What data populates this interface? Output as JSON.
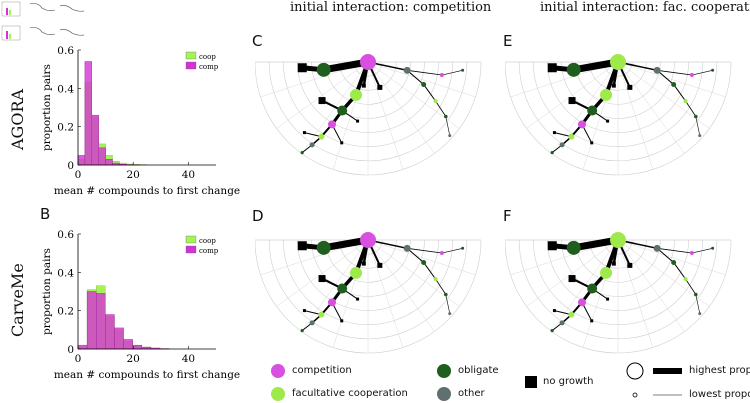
{
  "column_titles": {
    "competition": "initial interaction: competition",
    "cooperation": "initial interaction: fac. cooperation"
  },
  "row_labels": {
    "agora": "AGORA",
    "carveme": "CarveMe"
  },
  "panel_letters": {
    "b": "B",
    "c": "C",
    "d": "D",
    "e": "E",
    "f": "F"
  },
  "colors": {
    "coop": "#a6f25a",
    "comp": "#d433d4",
    "competition": "#d94fe0",
    "facultative_cooperation": "#9dea4a",
    "obligate": "#1f5e1f",
    "other": "#607070",
    "no_growth": "#000000"
  },
  "legend": {
    "competition": "competition",
    "facultative_cooperation": "facultative cooperation",
    "obligate": "obligate",
    "other": "other",
    "no_growth": "no growth",
    "highest": "highest proportion",
    "lowest": "lowest proportion"
  },
  "chart_data": [
    {
      "type": "bar",
      "panel": "AGORA",
      "xlabel": "mean # compounds to first change",
      "ylabel": "proportion pairs",
      "xlim": [
        0,
        50
      ],
      "ylim": [
        0,
        0.6
      ],
      "xticks": [
        "0",
        "20",
        "40"
      ],
      "yticks": [
        "0",
        "0.2",
        "0.4",
        "0.6"
      ],
      "bin_width": 2.5,
      "legend_position": "top-right",
      "series": [
        {
          "name": "coop",
          "values": [
            0.03,
            0.43,
            0.25,
            0.11,
            0.05,
            0.02,
            0.01,
            0.005,
            0.003,
            0.002
          ]
        },
        {
          "name": "comp",
          "values": [
            0.05,
            0.54,
            0.26,
            0.09,
            0.03,
            0.01,
            0.004,
            0.002,
            0.001,
            0.0
          ]
        }
      ]
    },
    {
      "type": "bar",
      "panel": "CarveMe",
      "xlabel": "mean # compounds to first change",
      "ylabel": "proportion pairs",
      "xlim": [
        0,
        50
      ],
      "ylim": [
        0,
        0.6
      ],
      "xticks": [
        "0",
        "20",
        "40"
      ],
      "yticks": [
        "0",
        "0.2",
        "0.4",
        "0.6"
      ],
      "bin_width": 3.3,
      "legend_position": "top-right",
      "series": [
        {
          "name": "coop",
          "values": [
            0.01,
            0.31,
            0.33,
            0.17,
            0.1,
            0.04,
            0.02,
            0.01,
            0.005,
            0.002
          ]
        },
        {
          "name": "comp",
          "values": [
            0.02,
            0.3,
            0.29,
            0.18,
            0.11,
            0.05,
            0.02,
            0.01,
            0.005,
            0.002
          ]
        }
      ]
    }
  ]
}
